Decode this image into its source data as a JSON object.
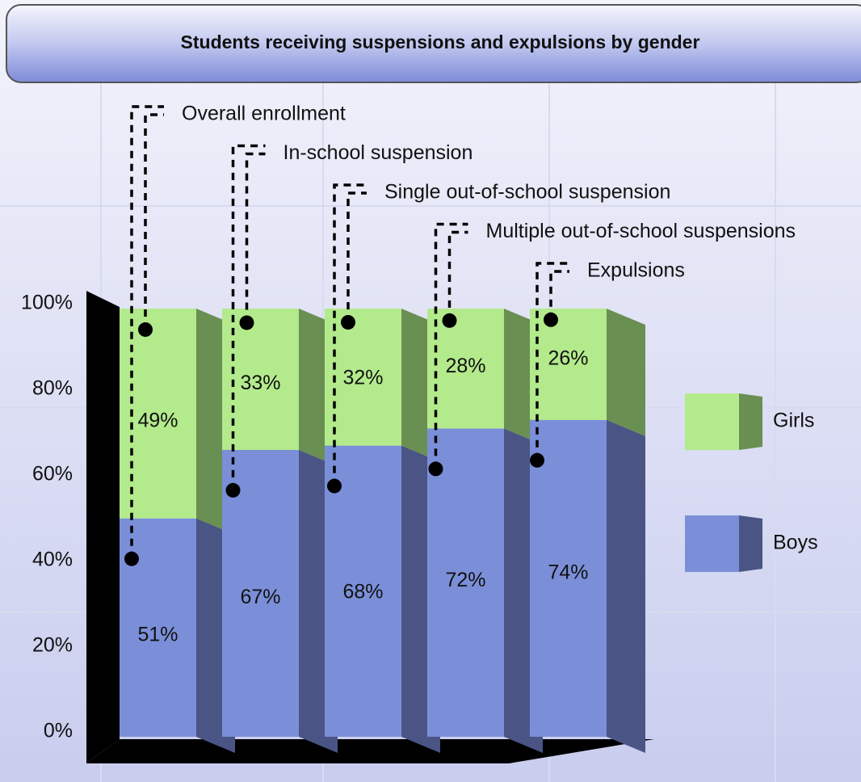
{
  "chart_data": {
    "type": "stacked-bar-3d",
    "title": "Students receiving suspensions and expulsions by gender",
    "categories": [
      "Overall enrollment",
      "In-school suspension",
      "Single out-of-school suspension",
      "Multiple out-of-school suspensions",
      "Expulsions"
    ],
    "series": [
      {
        "name": "Boys",
        "color": "#7b8fd9",
        "side_color": "#4a5585",
        "values": [
          51,
          67,
          68,
          72,
          74
        ],
        "value_labels": [
          "51%",
          "67%",
          "68%",
          "72%",
          "74%"
        ]
      },
      {
        "name": "Girls",
        "color": "#b3ea8c",
        "side_color": "#6a8f52",
        "values": [
          49,
          33,
          32,
          28,
          26
        ],
        "value_labels": [
          "49%",
          "33%",
          "32%",
          "28%",
          "26%"
        ]
      }
    ],
    "ylim": [
      0,
      100
    ],
    "yticks": [
      {
        "value": 0,
        "label": "0%"
      },
      {
        "value": 20,
        "label": "20%"
      },
      {
        "value": 40,
        "label": "40%"
      },
      {
        "value": 60,
        "label": "60%"
      },
      {
        "value": 80,
        "label": "80%"
      },
      {
        "value": 100,
        "label": "100%"
      }
    ],
    "legend": "right"
  }
}
